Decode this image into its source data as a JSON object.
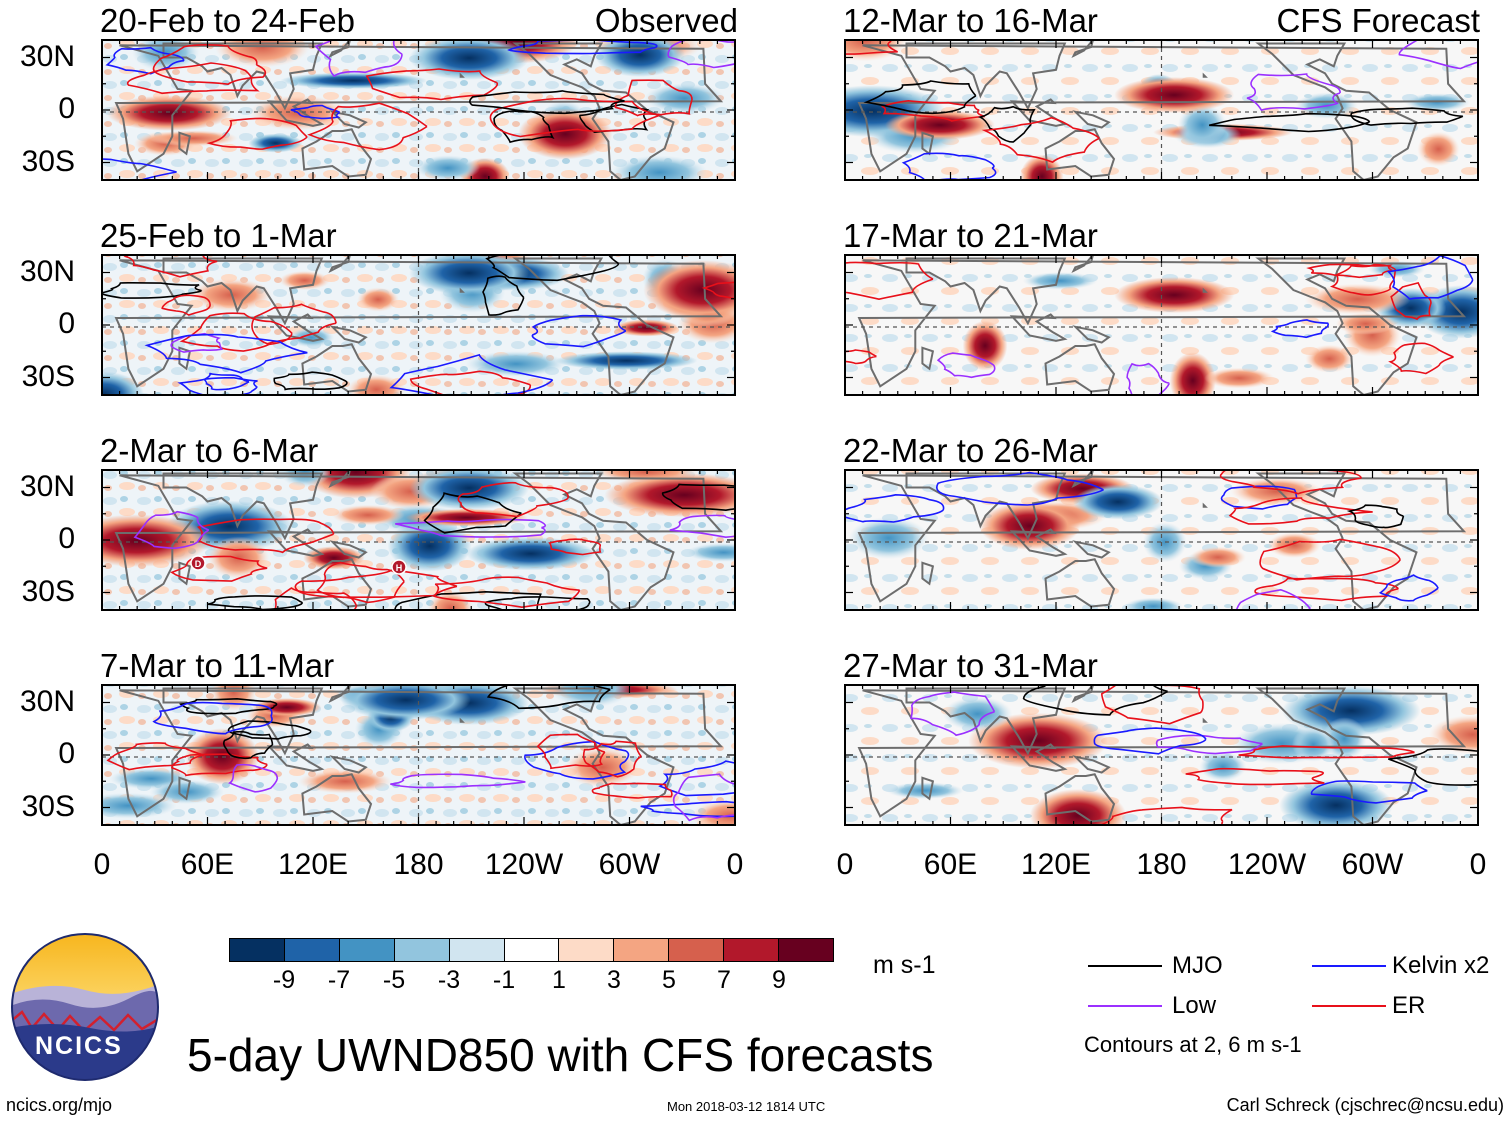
{
  "header": {
    "observed_label": "Observed",
    "forecast_label": "CFS Forecast"
  },
  "panels": {
    "left": [
      "20-Feb to 24-Feb",
      "25-Feb to 1-Mar",
      "2-Mar to 6-Mar",
      "7-Mar to 11-Mar"
    ],
    "right": [
      "12-Mar to 16-Mar",
      "17-Mar to 21-Mar",
      "22-Mar to 26-Mar",
      "27-Mar to 31-Mar"
    ]
  },
  "axes": {
    "lat_ticks": [
      "30N",
      "0",
      "30S"
    ],
    "lon_ticks": [
      "0",
      "60E",
      "120E",
      "180",
      "120W",
      "60W",
      "0"
    ]
  },
  "markers": {
    "d_label": "D",
    "h_label": "H"
  },
  "colorbar": {
    "colors": [
      "#053061",
      "#1f63a8",
      "#4393c3",
      "#92c5de",
      "#d1e5f0",
      "#ffffff",
      "#fddbc7",
      "#f4a582",
      "#d6604d",
      "#b2182b",
      "#67001f"
    ],
    "ticks": [
      "-9",
      "-7",
      "-5",
      "-3",
      "-1",
      "1",
      "3",
      "5",
      "7",
      "9"
    ],
    "unit": "m s-1"
  },
  "legend": {
    "items": [
      {
        "label": "MJO",
        "color": "#000000"
      },
      {
        "label": "Kelvin x2",
        "color": "#1a1aff"
      },
      {
        "label": "Low",
        "color": "#9b30ff"
      },
      {
        "label": "ER",
        "color": "#e8101a"
      }
    ],
    "note": "Contours at 2, 6 m s-1"
  },
  "logo": {
    "text": "NCICS"
  },
  "title": "5-day UWND850 with CFS forecasts",
  "footer": {
    "left": "ncics.org/mjo",
    "center": "Mon 2018-03-12 1814 UTC",
    "right": "Carl Schreck (cjschrec@ncsu.edu)"
  }
}
